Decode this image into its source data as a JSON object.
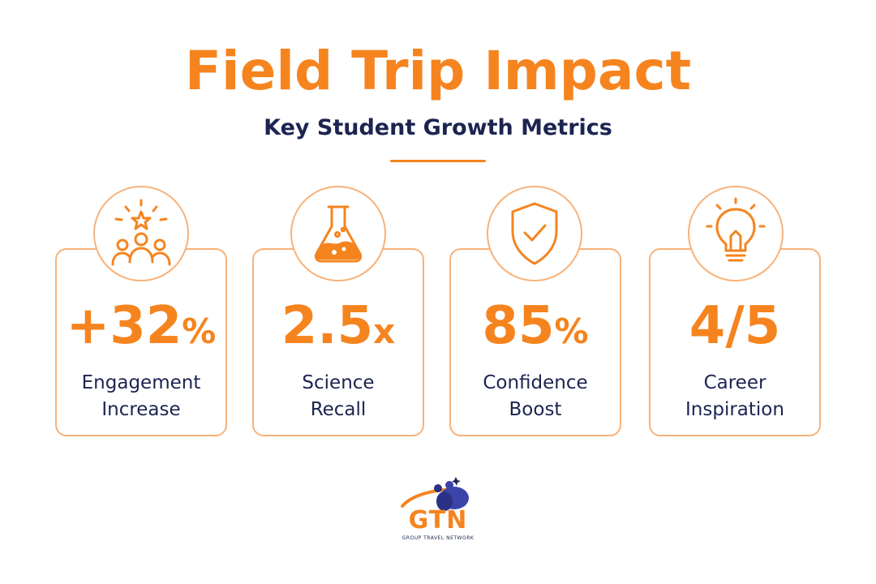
{
  "header": {
    "title": "Field Trip Impact",
    "subtitle": "Key Student Growth Metrics"
  },
  "metrics": [
    {
      "value": "+32",
      "unit": "%",
      "label_line1": "Engagement",
      "label_line2": "Increase",
      "icon": "people-star-icon"
    },
    {
      "value": "2.5",
      "unit": "x",
      "label_line1": "Science",
      "label_line2": "Recall",
      "icon": "flask-icon"
    },
    {
      "value": "85",
      "unit": "%",
      "label_line1": "Confidence",
      "label_line2": "Boost",
      "icon": "shield-check-icon"
    },
    {
      "value": "4/5",
      "unit": "",
      "label_line1": "Career",
      "label_line2": "Inspiration",
      "icon": "lightbulb-icon"
    }
  ],
  "logo": {
    "name": "GTN",
    "tagline": "GROUP TRAVEL NETWORK"
  },
  "colors": {
    "accent": "#f5841f",
    "accent_light": "#f7b27a",
    "text_dark": "#1c2451"
  }
}
